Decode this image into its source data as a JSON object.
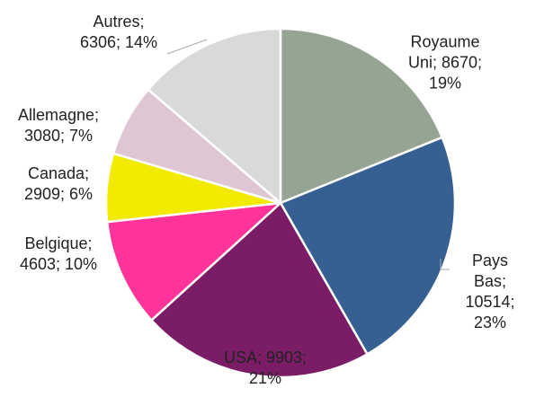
{
  "chart_data": {
    "type": "pie",
    "categories": [
      "Royaume Uni",
      "Pays Bas",
      "USA",
      "Belgique",
      "Canada",
      "Allemagne",
      "Autres"
    ],
    "values": [
      8670,
      10514,
      9903,
      4603,
      2909,
      3080,
      6306
    ],
    "percent_labels": [
      "19%",
      "23%",
      "21%",
      "10%",
      "6%",
      "7%",
      "14%"
    ],
    "label_separator": "; ",
    "colors": [
      "#96a593",
      "#366092",
      "#7b1c66",
      "#ff3399",
      "#f2ea00",
      "#dfc6d4",
      "#d9d9d9"
    ]
  }
}
